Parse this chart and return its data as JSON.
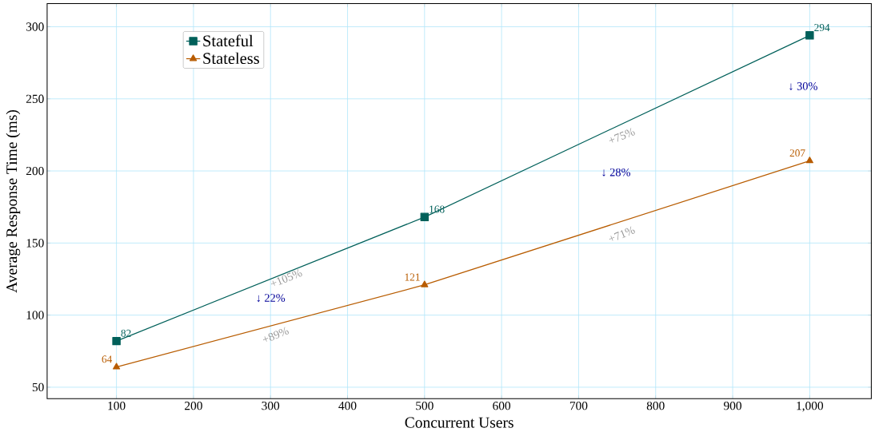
{
  "chart_data": {
    "type": "line",
    "xlabel": "Concurrent Users",
    "ylabel": "Average Response Time (ms)",
    "x": [
      100,
      500,
      1000
    ],
    "series": [
      {
        "name": "Stateful",
        "color": "#00605a",
        "values": [
          82,
          168,
          294
        ],
        "marker": "square"
      },
      {
        "name": "Stateless",
        "color": "#b85c00",
        "values": [
          64,
          121,
          207
        ],
        "marker": "triangle"
      }
    ],
    "xlim": [
      10,
      1080
    ],
    "ylim": [
      42,
      316
    ],
    "xticks": [
      100,
      200,
      300,
      400,
      500,
      600,
      700,
      800,
      900,
      {
        "value": 1000,
        "label": "1,000"
      }
    ],
    "yticks": [
      50,
      100,
      150,
      200,
      250,
      300
    ],
    "grid": true,
    "legend": "top left",
    "data_labels": true,
    "line_style": "solid",
    "annotations": [
      "↓ 22%",
      "↓ 28%",
      "↓ 30%",
      "+105%",
      "+89%",
      "+75%",
      "+71%"
    ]
  }
}
